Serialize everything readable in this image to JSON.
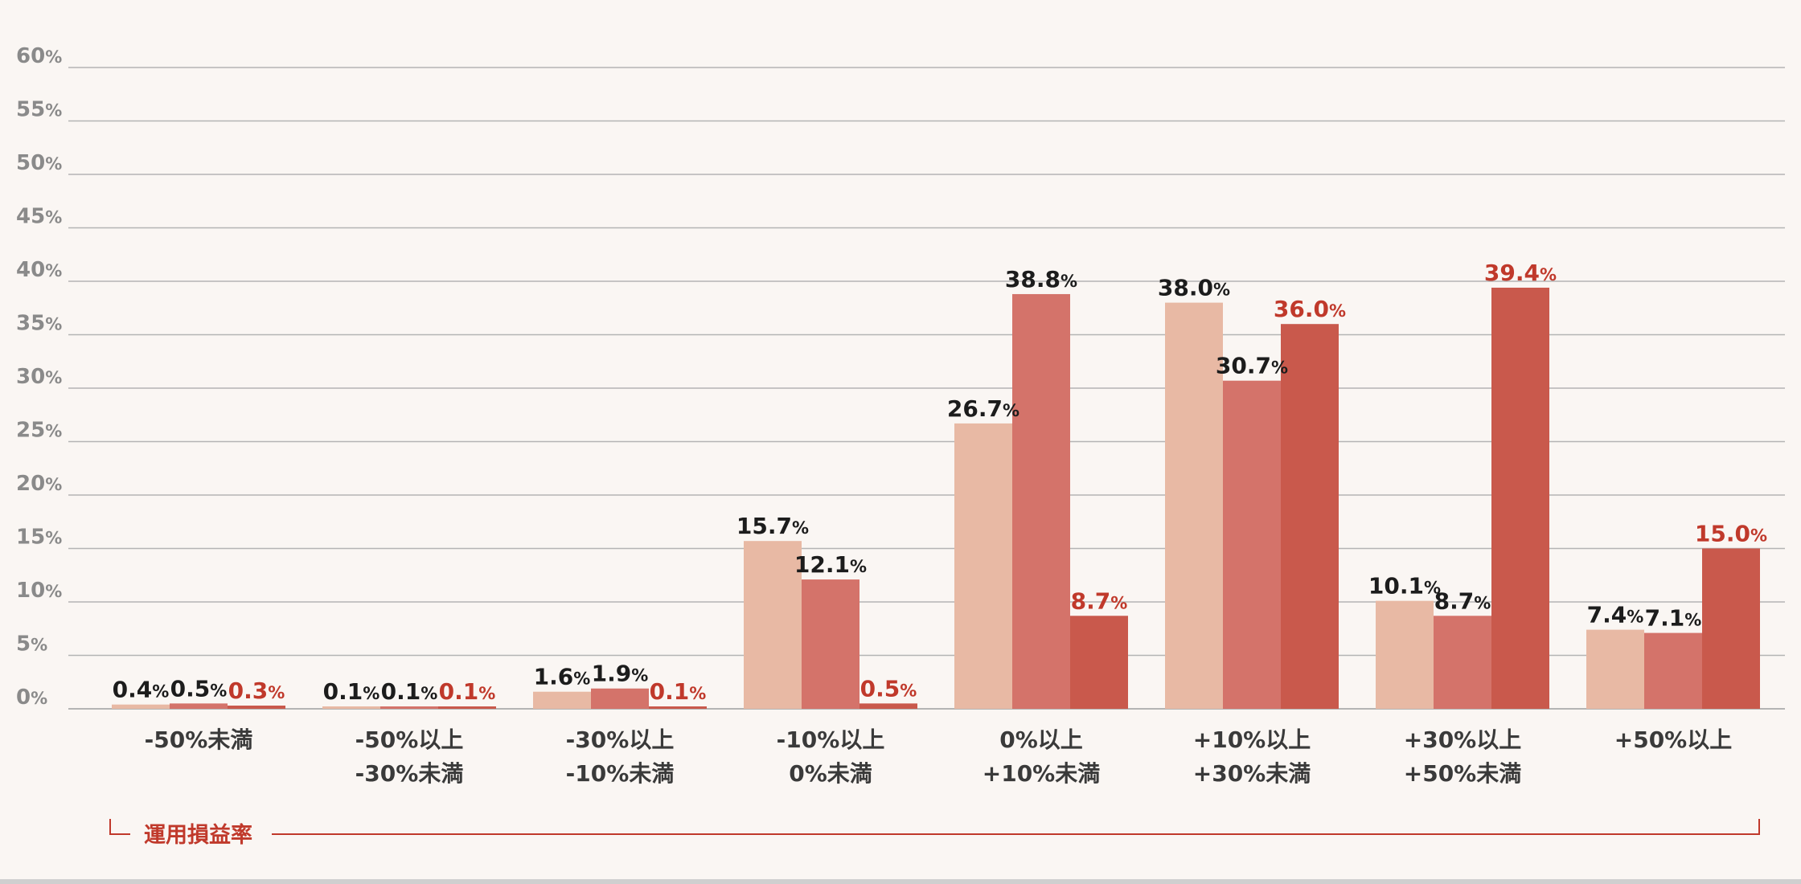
{
  "chart_data": {
    "type": "bar",
    "categories": [
      [
        "-50%未満"
      ],
      [
        "-50%以上",
        "-30%未満"
      ],
      [
        "-30%以上",
        "-10%未満"
      ],
      [
        "-10%以上",
        "0%未満"
      ],
      [
        "0%以上",
        "+10%未満"
      ],
      [
        "+10%以上",
        "+30%未満"
      ],
      [
        "+30%以上",
        "+50%未満"
      ],
      [
        "+50%以上"
      ]
    ],
    "series": [
      {
        "values": [
          0.4,
          0.1,
          1.6,
          15.7,
          26.7,
          38.0,
          10.1,
          7.4
        ],
        "color": "#e8b9a4",
        "label_color": "#1c1c1c"
      },
      {
        "values": [
          0.5,
          0.1,
          1.9,
          12.1,
          38.8,
          30.7,
          8.7,
          7.1
        ],
        "color": "#d4736a",
        "label_color": "#1c1c1c"
      },
      {
        "values": [
          0.3,
          0.1,
          0.1,
          0.5,
          8.7,
          36.0,
          39.4,
          15.0
        ],
        "color": "#c9594c",
        "label_color": "#c0392b"
      }
    ],
    "value_labels": [
      [
        "0.4",
        "0.1",
        "1.6",
        "15.7",
        "26.7",
        "38.0",
        "10.1",
        "7.4"
      ],
      [
        "0.5",
        "0.1",
        "1.9",
        "12.1",
        "38.8",
        "30.7",
        "8.7",
        "7.1"
      ],
      [
        "0.3",
        "0.1",
        "0.1",
        "0.5",
        "8.7",
        "36.0",
        "39.4",
        "15.0"
      ]
    ],
    "unit": "%",
    "ylim": [
      0,
      60
    ],
    "yticks": [
      0,
      5,
      10,
      15,
      20,
      25,
      30,
      35,
      40,
      45,
      50,
      55,
      60
    ],
    "ytick_labels": [
      "0",
      "5",
      "10",
      "15",
      "20",
      "25",
      "30",
      "35",
      "40",
      "45",
      "50",
      "55",
      "60"
    ],
    "xlabel": "運用損益率",
    "grid": true,
    "colors": {
      "grid": "#b4b4b4",
      "axis_title": "#c0392b",
      "bracket": "#c0392b",
      "tick": "#8a8a8a",
      "category": "#3a3a3a"
    }
  }
}
